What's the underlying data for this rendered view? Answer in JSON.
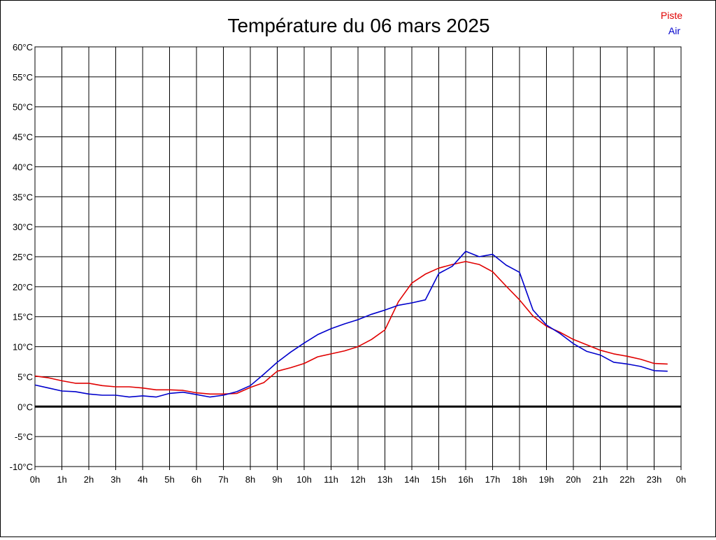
{
  "chart_data": {
    "type": "line",
    "title": "Température du 06 mars 2025",
    "xlabel": "",
    "ylabel": "",
    "x_ticks": [
      "0h",
      "1h",
      "2h",
      "3h",
      "4h",
      "5h",
      "6h",
      "7h",
      "8h",
      "9h",
      "10h",
      "11h",
      "12h",
      "13h",
      "14h",
      "15h",
      "16h",
      "17h",
      "18h",
      "19h",
      "20h",
      "21h",
      "22h",
      "23h",
      "0h"
    ],
    "y_ticks": [
      "60°C",
      "55°C",
      "50°C",
      "45°C",
      "40°C",
      "35°C",
      "30°C",
      "25°C",
      "20°C",
      "15°C",
      "10°C",
      "5°C",
      "0°C",
      "-5°C",
      "-10°C"
    ],
    "xlim": [
      0,
      24
    ],
    "ylim": [
      -10,
      60
    ],
    "grid": true,
    "legend_position": "top-right",
    "series": [
      {
        "name": "Piste",
        "color": "#e00000",
        "x": [
          0,
          0.5,
          1,
          1.5,
          2,
          2.5,
          3,
          3.5,
          4,
          4.5,
          5,
          5.5,
          6,
          6.5,
          7,
          7.5,
          8,
          8.5,
          9,
          9.5,
          10,
          10.5,
          11,
          11.5,
          12,
          12.5,
          13,
          13.5,
          14,
          14.5,
          15,
          15.5,
          16,
          16.5,
          17,
          17.5,
          18,
          18.5,
          19,
          19.5,
          20,
          20.5,
          21,
          21.5,
          22,
          22.5,
          23,
          23.5
        ],
        "values": [
          5.1,
          4.8,
          4.3,
          3.9,
          3.9,
          3.5,
          3.3,
          3.3,
          3.1,
          2.8,
          2.8,
          2.7,
          2.3,
          2.1,
          2.1,
          2.2,
          3.2,
          4.0,
          5.9,
          6.5,
          7.2,
          8.3,
          8.8,
          9.3,
          10.0,
          11.2,
          12.8,
          17.5,
          20.6,
          22.1,
          23.1,
          23.7,
          24.2,
          23.7,
          22.5,
          20.1,
          17.8,
          15.1,
          13.4,
          12.4,
          11.2,
          10.3,
          9.4,
          8.8,
          8.4,
          7.9,
          7.2,
          7.1
        ]
      },
      {
        "name": "Air",
        "color": "#0000cc",
        "x": [
          0,
          0.5,
          1,
          1.5,
          2,
          2.5,
          3,
          3.5,
          4,
          4.5,
          5,
          5.5,
          6,
          6.5,
          7,
          7.5,
          8,
          8.5,
          9,
          9.5,
          10,
          10.5,
          11,
          11.5,
          12,
          12.5,
          13,
          13.5,
          14,
          14.5,
          15,
          15.5,
          16,
          16.5,
          17,
          17.5,
          18,
          18.5,
          19,
          19.5,
          20,
          20.5,
          21,
          21.5,
          22,
          22.5,
          23,
          23.5
        ],
        "values": [
          3.6,
          3.1,
          2.6,
          2.5,
          2.1,
          1.9,
          1.9,
          1.6,
          1.8,
          1.6,
          2.2,
          2.4,
          2.0,
          1.6,
          1.9,
          2.5,
          3.5,
          5.4,
          7.4,
          9.1,
          10.6,
          12.0,
          13.0,
          13.8,
          14.5,
          15.4,
          16.1,
          16.9,
          17.3,
          17.8,
          22.2,
          23.4,
          25.9,
          25.0,
          25.4,
          23.6,
          22.4,
          16.1,
          13.6,
          12.2,
          10.5,
          9.2,
          8.6,
          7.4,
          7.1,
          6.7,
          6.0,
          5.9
        ]
      }
    ]
  }
}
